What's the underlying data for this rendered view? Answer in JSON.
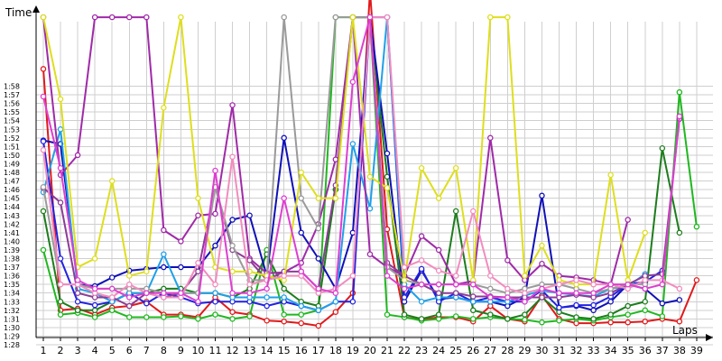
{
  "chart_data": {
    "type": "line",
    "ylabel": "Time",
    "xlabel": "Laps",
    "ylim_seconds": [
      86,
      121
    ],
    "y_ticks": [
      "1:28",
      "1:29",
      "1:30",
      "1:31",
      "1:32",
      "1:33",
      "1:34",
      "1:35",
      "1:36",
      "1:37",
      "1:38",
      "1:39",
      "1:40",
      "1:41",
      "1:42",
      "1:43",
      "1:44",
      "1:45",
      "1:46",
      "1:47",
      "1:48",
      "1:49",
      "1:50",
      "1:51",
      "1:52",
      "1:53",
      "1:54",
      "1:55",
      "1:56",
      "1:57",
      "1:58"
    ],
    "x_ticks": [
      1,
      2,
      3,
      4,
      5,
      6,
      7,
      8,
      9,
      10,
      11,
      12,
      13,
      14,
      15,
      16,
      17,
      18,
      19,
      20,
      21,
      22,
      23,
      24,
      25,
      26,
      27,
      28,
      29,
      30,
      31,
      32,
      33,
      34,
      35,
      36,
      37,
      38,
      39
    ],
    "grid": true,
    "series": [
      {
        "color": "#e0191b",
        "values": [
          118,
          90,
          90.2,
          89.5,
          90.3,
          90.5,
          91,
          89.5,
          89.5,
          89.2,
          91.5,
          89.8,
          89.5,
          88.8,
          88.7,
          88.5,
          88.2,
          89.8,
          92,
          130,
          99.4,
          89.2,
          88.9,
          89.2,
          89.2,
          88.7,
          90.5,
          89,
          88.7,
          91.7,
          89,
          88.5,
          88.5,
          88.6,
          88.6,
          88.7,
          89,
          88.7,
          93.5
        ]
      },
      {
        "color": "#1fb81f",
        "values": [
          97,
          89.5,
          89.7,
          89.2,
          90,
          89.2,
          89.2,
          89.2,
          89.3,
          89,
          89.5,
          89,
          89.3,
          97,
          89.5,
          89.5,
          90,
          124,
          124,
          124,
          89.5,
          89.2,
          88.8,
          89,
          89.3,
          89,
          89.2,
          89,
          88.9,
          88.6,
          88.8,
          89,
          88.8,
          89.2,
          89.5,
          90,
          89.3,
          115.3,
          99.7
        ]
      },
      {
        "color": "#1c7d1c",
        "values": [
          101.5,
          91,
          90,
          90,
          91,
          92,
          92,
          92.5,
          92.5,
          92,
          92,
          91.5,
          92.5,
          96.5,
          92.5,
          91,
          90.5,
          104,
          124,
          124,
          105.5,
          89.5,
          89,
          89.5,
          101.5,
          90,
          89.5,
          89,
          89.5,
          91.5,
          89.8,
          89.2,
          89,
          89.5,
          90.5,
          91,
          108.8,
          99
        ]
      },
      {
        "color": "#1010b8",
        "values": [
          109.7,
          109.3,
          93,
          92.8,
          93.8,
          94.6,
          94.8,
          95,
          95,
          95,
          97.5,
          100.5,
          101,
          94,
          110,
          99,
          96,
          92.5,
          99,
          124,
          108.2,
          91,
          94.6,
          91.3,
          91.5,
          91,
          91,
          90.5,
          91.5,
          103.3,
          90.3,
          90.5,
          90,
          91,
          93,
          92.5,
          90.8,
          91.2
        ]
      },
      {
        "color": "#2222e0",
        "values": [
          109.6,
          96,
          91,
          90.6,
          91,
          92,
          90.8,
          92,
          91.5,
          90.8,
          91,
          91,
          91,
          90.5,
          91,
          90.5,
          90,
          91,
          91,
          124,
          124,
          91.5,
          94.8,
          91,
          92,
          91,
          91.5,
          91,
          91,
          92.3,
          90.3,
          90.6,
          90.6,
          91.6,
          93,
          93.3,
          94.6
        ]
      },
      {
        "color": "#1fa0e8",
        "values": [
          103.7,
          111,
          92.5,
          92,
          91,
          92,
          92,
          96.5,
          92,
          92,
          92,
          91.5,
          91.5,
          91.5,
          91.5,
          90.5,
          90,
          91,
          109.3,
          101.8,
          124,
          93,
          91,
          91.5,
          91.5,
          91,
          91,
          91,
          91.7,
          92.3,
          92,
          91.8,
          91.6,
          92.5,
          92.8,
          94.2
        ]
      },
      {
        "color": "#a02aa8",
        "values": [
          124,
          105.7,
          108,
          124,
          124,
          124,
          124,
          99.3,
          98,
          101,
          101.2,
          113.8,
          96,
          94.3,
          94.4,
          95.5,
          100,
          107.5,
          124,
          96.5,
          95,
          94,
          98.6,
          97,
          93,
          93.4,
          110,
          95.8,
          93.5,
          95.4,
          94,
          93.8,
          93.5,
          93,
          100.5
        ]
      },
      {
        "color": "#8c3c96",
        "values": [
          104.2,
          102.5,
          92,
          91.5,
          91.5,
          90.5,
          92,
          91.5,
          92,
          94.5,
          104.3,
          97,
          95.8,
          93.5,
          94.5,
          94.5,
          92.5,
          104.5,
          124,
          124,
          95.5,
          94,
          93,
          92,
          92,
          91.6,
          91.6,
          91.5,
          91.5,
          91.5,
          91.5,
          91.8,
          91.5,
          92,
          93,
          94,
          94.2,
          112.2
        ]
      },
      {
        "color": "#9a9a9a",
        "values": [
          104.3,
          93,
          93,
          92.5,
          92.5,
          92.5,
          92.5,
          92,
          92,
          92,
          104.3,
          97.5,
          93.5,
          93.5,
          124,
          103,
          99.5,
          124,
          124,
          124,
          95,
          93.5,
          93,
          93,
          93,
          93,
          92.5,
          92,
          92.5,
          93,
          93,
          92.5,
          92,
          92.5,
          93,
          93
        ]
      },
      {
        "color": "#dede1e",
        "values": [
          124,
          114.5,
          95,
          96,
          105,
          94,
          94.5,
          113.5,
          124,
          103,
          95,
          94.5,
          94.5,
          94,
          93.5,
          106,
          103,
          103,
          124,
          105.5,
          104.2,
          93.5,
          106.5,
          103,
          106.5,
          93.5,
          124,
          124,
          94,
          97.5,
          93.5,
          93,
          93,
          105.7,
          93.5,
          99
        ]
      },
      {
        "color": "#f28cbf",
        "values": [
          108.6,
          93,
          93,
          92,
          91.5,
          93,
          92,
          91.5,
          91.5,
          95.5,
          93,
          107.8,
          93,
          93.5,
          94,
          94,
          92,
          92.5,
          94,
          124,
          124,
          95,
          95.8,
          94.6,
          94,
          101.5,
          94,
          92.5,
          92,
          92.5,
          93,
          93.5,
          93,
          93,
          92.5,
          93.5,
          93.5,
          92.5
        ]
      },
      {
        "color": "#de3ed0",
        "values": [
          114.8,
          106.5,
          93.5,
          92.5,
          92.5,
          91.5,
          92,
          92,
          92,
          91,
          106.2,
          92,
          92,
          92.5,
          103,
          94.5,
          92.5,
          92,
          116.5,
          124,
          94,
          92.5,
          93,
          93,
          93,
          93,
          91.5,
          91.5,
          91,
          92.5,
          92,
          92,
          92,
          93,
          93,
          92.5,
          93,
          112.5
        ]
      }
    ]
  }
}
